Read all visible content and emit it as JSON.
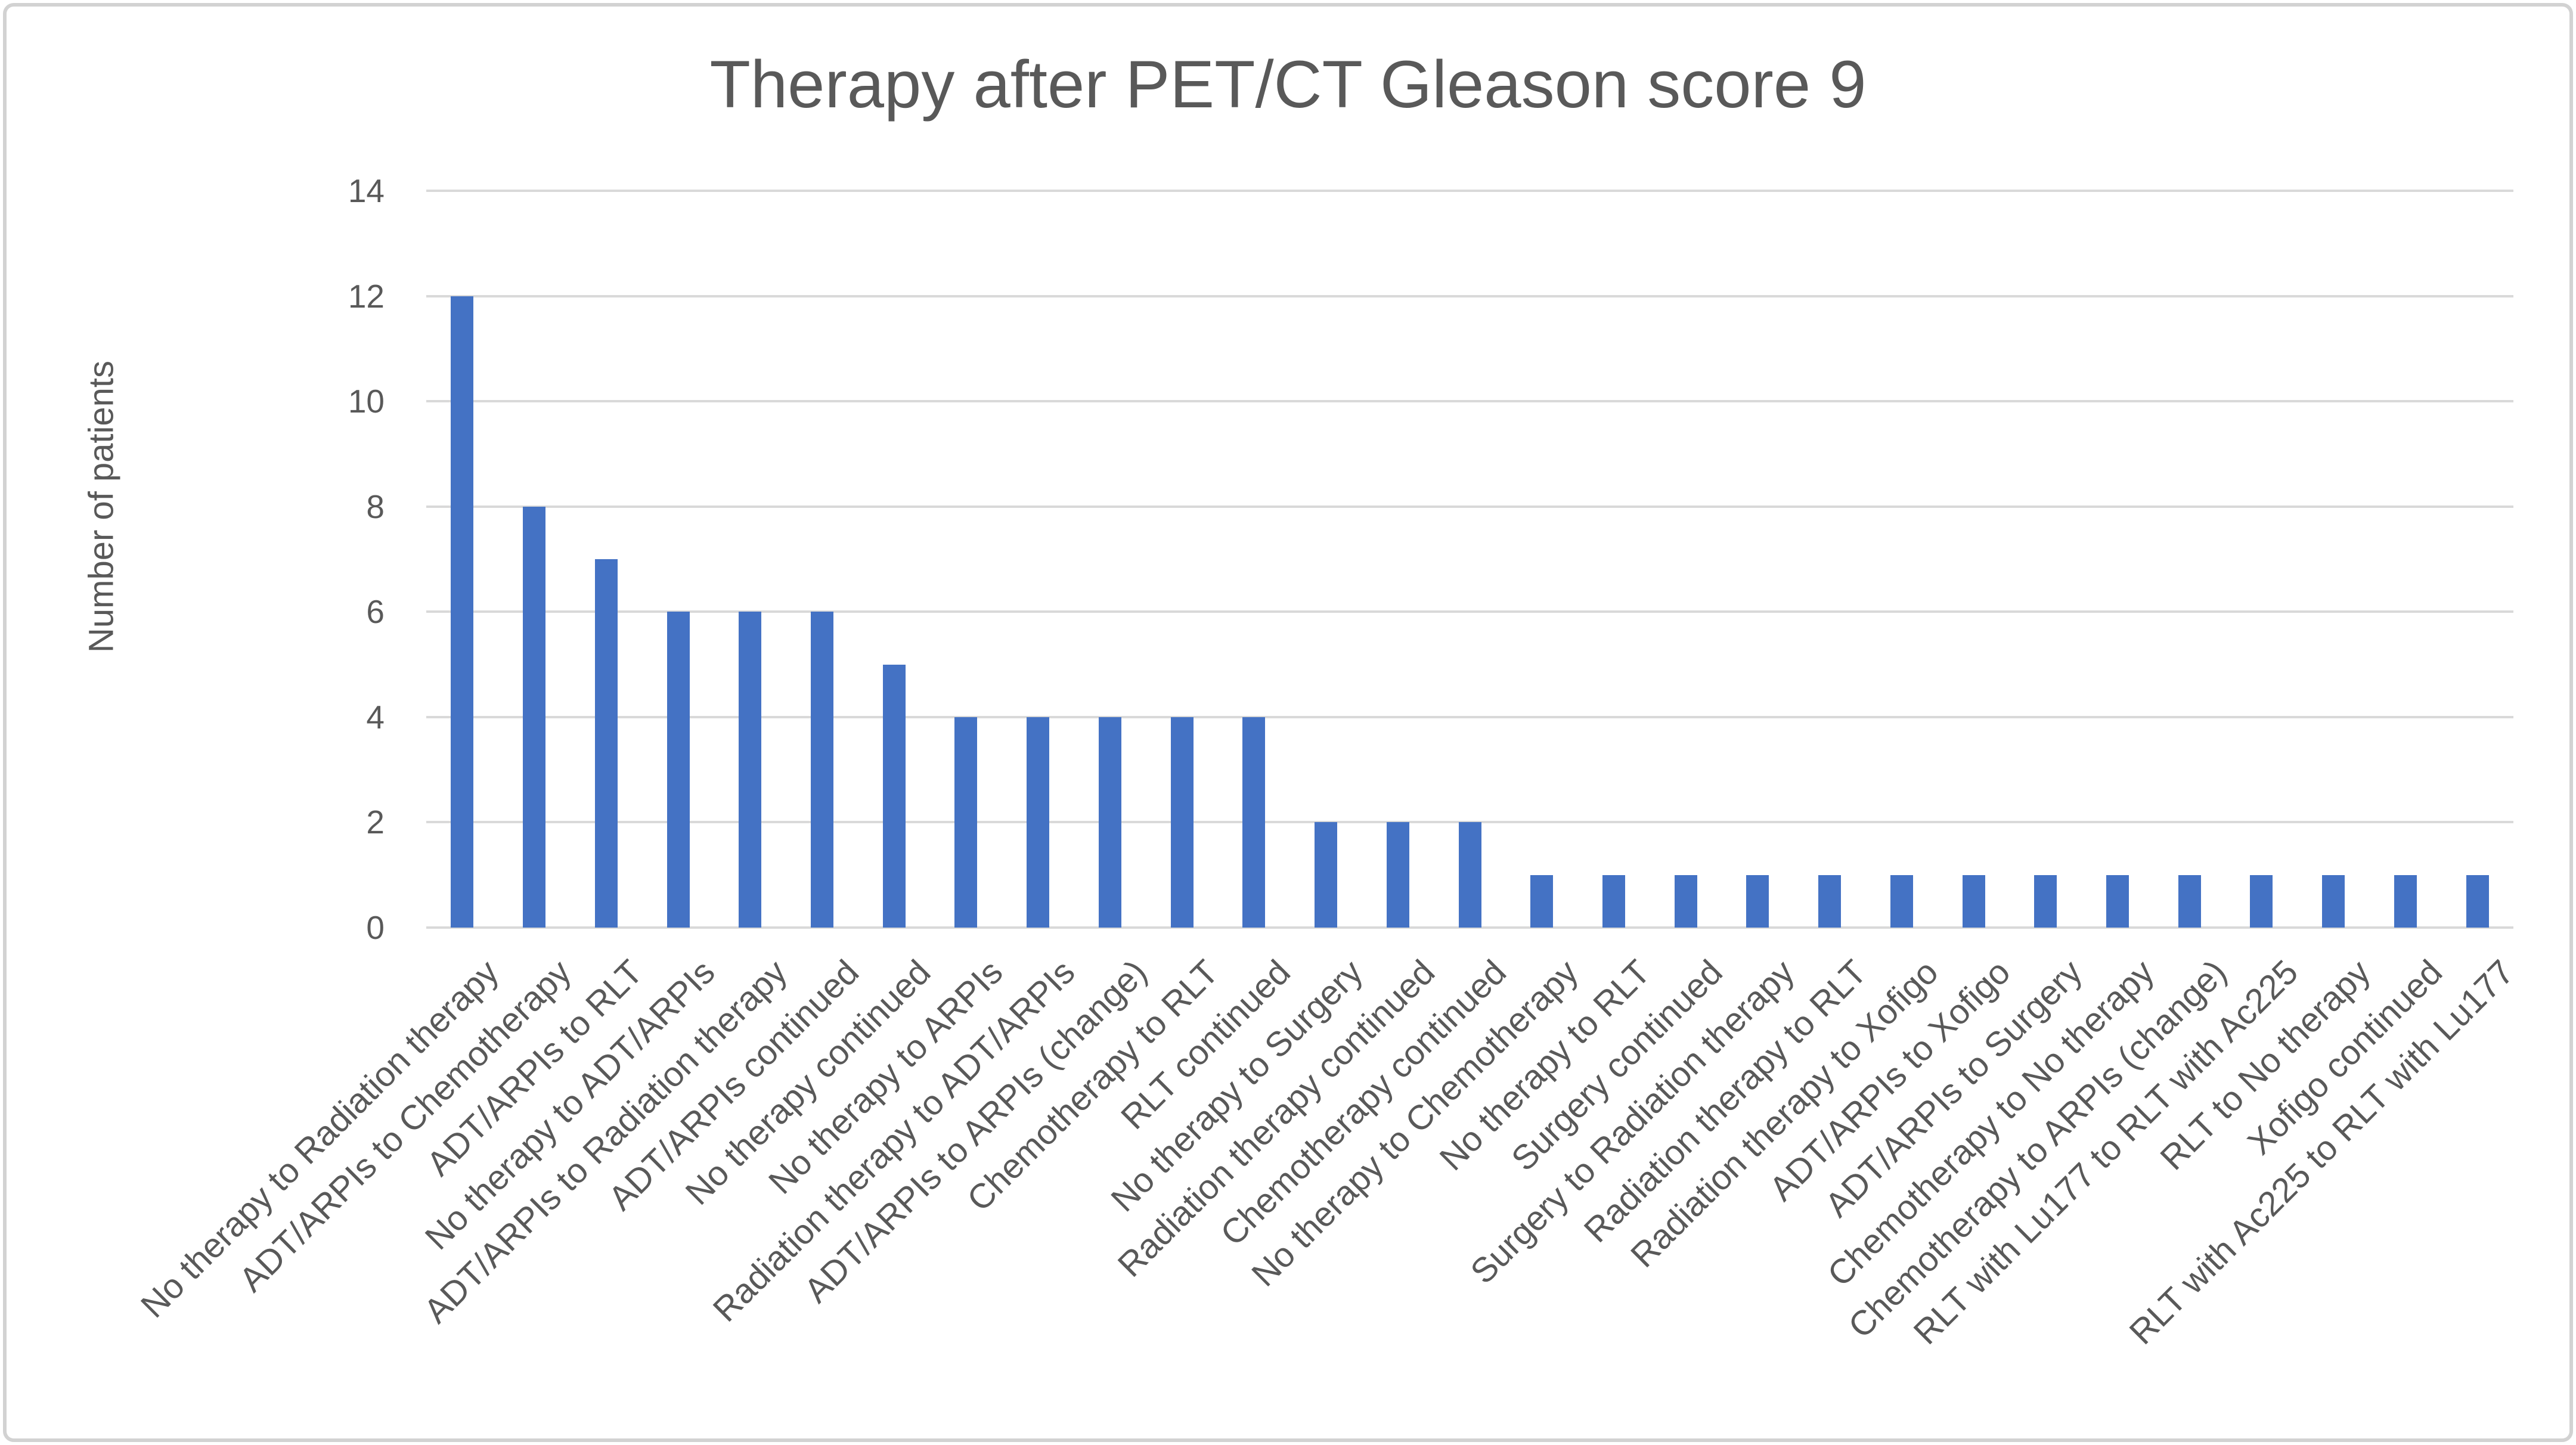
{
  "chart_data": {
    "type": "bar",
    "title": "Therapy after PET/CT Gleason score 9",
    "xlabel": "",
    "ylabel": "Number of patients",
    "categories": [
      "No therapy to Radiation therapy",
      "ADT/ARPIs to Chemotherapy",
      "ADT/ARPIs to RLT",
      "No therapy to ADT/ARPIs",
      "ADT/ARPIs to Radiation therapy",
      "ADT/ARPIs continued",
      "No therapy continued",
      "No therapy to ARPIs",
      "Radiation therapy to ADT/ARPIs",
      "ADT/ARPIs to ARPIs (change)",
      "Chemotherapy to RLT",
      "RLT continued",
      "No therapy to Surgery",
      "Radiation therapy continued",
      "Chemotherapy continued",
      "No therapy to Chemotherapy",
      "No therapy to RLT",
      "Surgery continued",
      "Surgery to Radiation therapy",
      "Radiation therapy to RLT",
      "Radiation therapy to Xofigo",
      "ADT/ARPIs to Xofigo",
      "ADT/ARPIs to Surgery",
      "Chemotherapy to No therapy",
      "Chemotherapy to ARPIs (change)",
      "RLT with Lu177 to RLT with Ac225",
      "RLT to No therapy",
      "Xofigo continued",
      "RLT with Ac225 to RLT with Lu177"
    ],
    "values": [
      12,
      8,
      7,
      6,
      6,
      6,
      5,
      4,
      4,
      4,
      4,
      4,
      2,
      2,
      2,
      1,
      1,
      1,
      1,
      1,
      1,
      1,
      1,
      1,
      1,
      1,
      1,
      1,
      1
    ],
    "ylim": [
      0,
      14
    ],
    "yticks": [
      0,
      2,
      4,
      6,
      8,
      10,
      12,
      14
    ],
    "grid": true,
    "legend": "none",
    "colors": {
      "bar": "#4472c4",
      "gridline": "#d9d9d9",
      "text": "#595959",
      "frame_border": "#d2d2d2",
      "background": "#ffffff"
    }
  }
}
